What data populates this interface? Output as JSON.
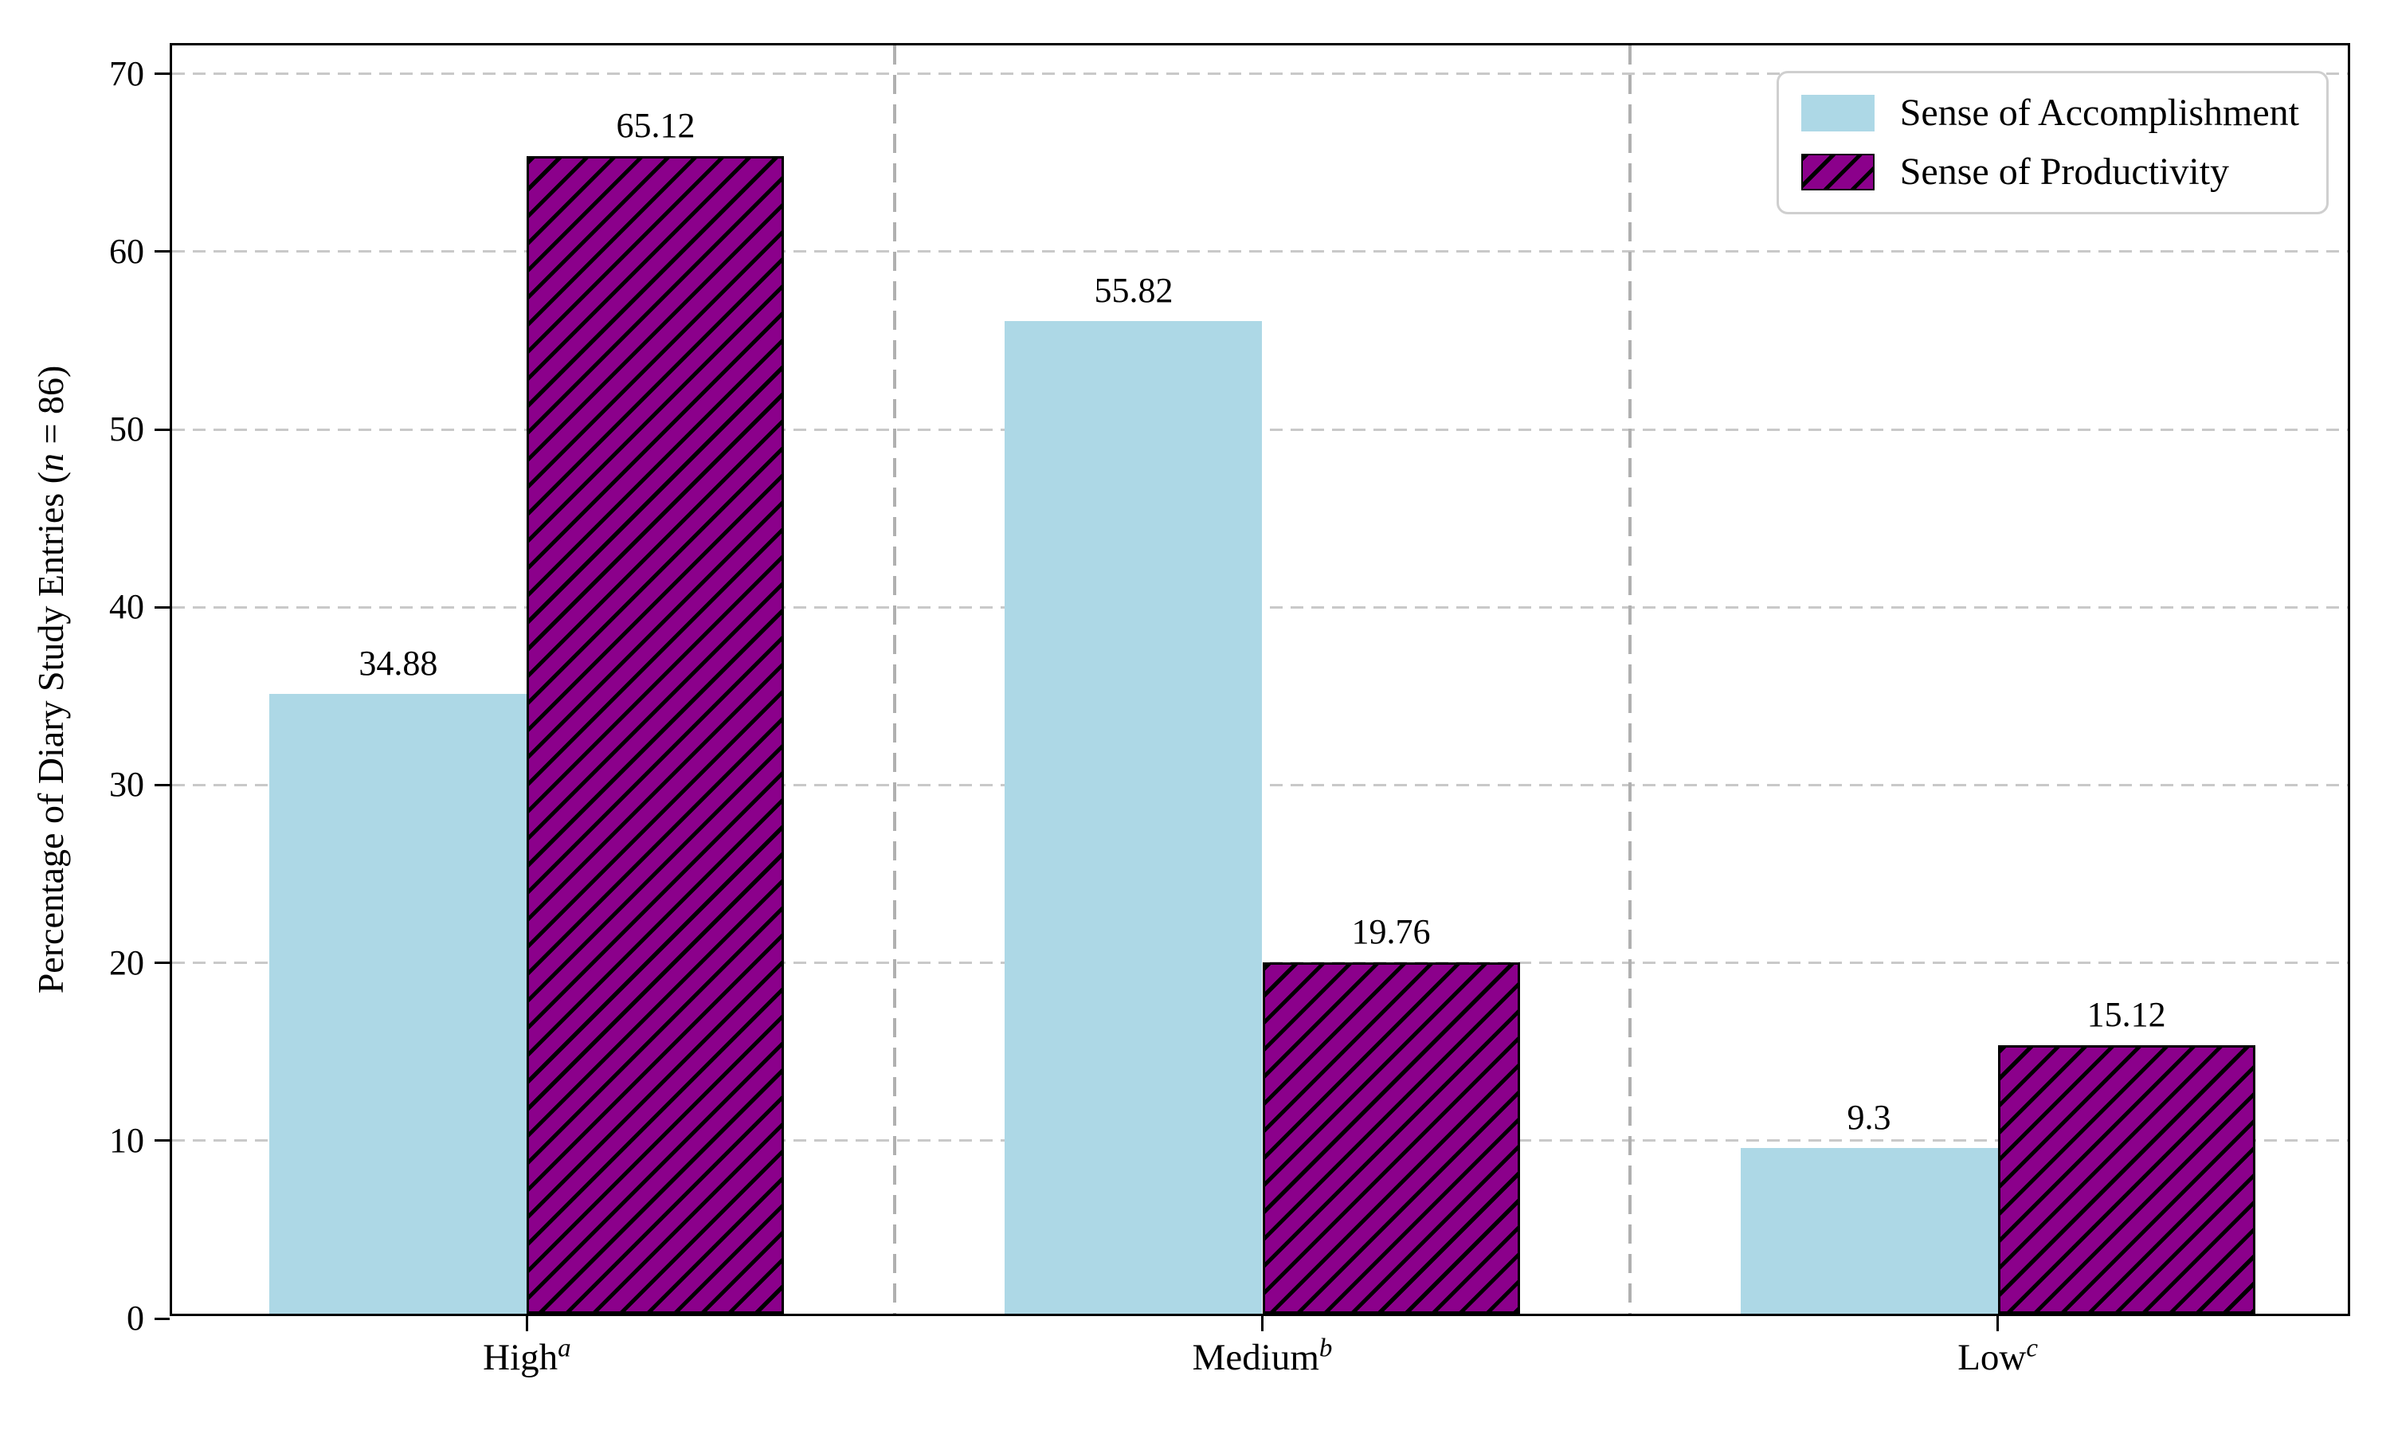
{
  "ylabel": {
    "prefix": "Percentage of Diary Study Entries (",
    "italic": "n",
    "suffix": " = 86)"
  },
  "legend": {
    "position": "upper-right",
    "items": [
      {
        "label": "Sense of Accomplishment",
        "swatch": "solid-lightblue"
      },
      {
        "label": "Sense of Productivity",
        "swatch": "purple-diagonal-hatch"
      }
    ]
  },
  "colors": {
    "accomplishment": "#ADD8E6",
    "productivity": "#8B008B",
    "hatch": "#000000",
    "grid": "#c9c9c9",
    "separator": "#b0b0b0",
    "axis": "#000000",
    "text": "#000000",
    "legend_border": "#cfcfcf",
    "background": "#ffffff"
  },
  "chart_data": {
    "type": "bar",
    "title": "",
    "xlabel": "",
    "ylabel": "Percentage of Diary Study Entries (n = 86)",
    "categories": [
      {
        "label": "High",
        "superscript": "a"
      },
      {
        "label": "Medium",
        "superscript": "b"
      },
      {
        "label": "Low",
        "superscript": "c"
      }
    ],
    "series": [
      {
        "name": "Sense of Accomplishment",
        "values": [
          34.88,
          55.82,
          9.3
        ],
        "labels": [
          "34.88",
          "55.82",
          "9.3"
        ],
        "color": "#ADD8E6",
        "hatch": null
      },
      {
        "name": "Sense of Productivity",
        "values": [
          65.12,
          19.76,
          15.12
        ],
        "labels": [
          "65.12",
          "19.76",
          "15.12"
        ],
        "color": "#8B008B",
        "hatch": "/"
      }
    ],
    "ylim": [
      0,
      71.6
    ],
    "yticks": [
      0,
      10,
      20,
      30,
      40,
      50,
      60,
      70
    ],
    "xlim": [
      -0.4825,
      2.4825
    ],
    "bar_width": 0.35,
    "grid": "horizontal-dashed",
    "separators_x": [
      0.5,
      1.5
    ],
    "legend_position": "upper right"
  }
}
